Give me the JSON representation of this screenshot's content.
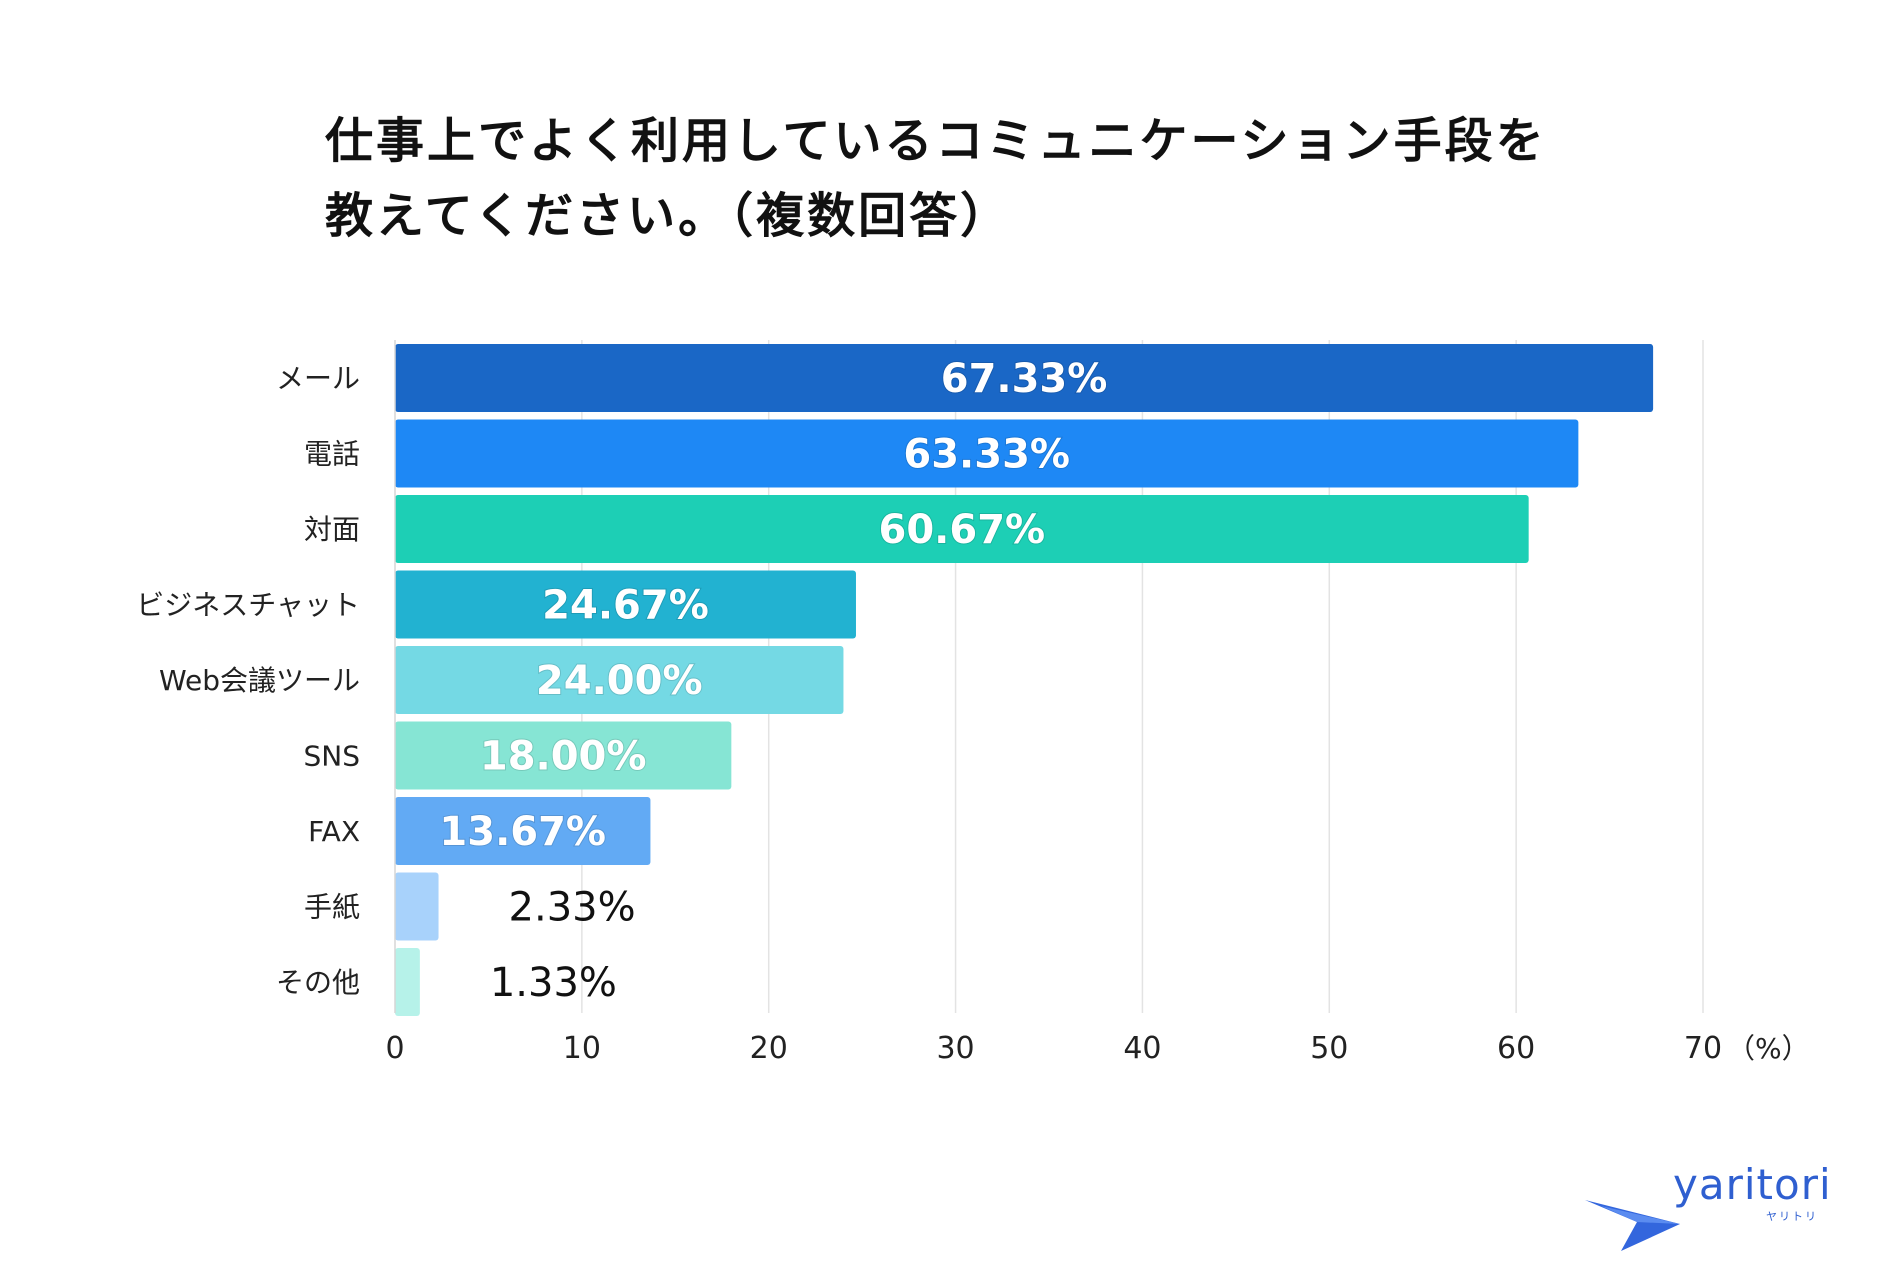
{
  "title": {
    "line1": "仕事上でよく利用しているコミュニケーション手段を",
    "line2": "教えてください。（複数回答）"
  },
  "chart_data": {
    "type": "bar",
    "orientation": "horizontal",
    "categories": [
      "メール",
      "電話",
      "対面",
      "ビジネスチャット",
      "Web会議ツール",
      "SNS",
      "FAX",
      "手紙",
      "その他"
    ],
    "values": [
      67.33,
      63.33,
      60.67,
      24.67,
      24.0,
      18.0,
      13.67,
      2.33,
      1.33
    ],
    "data_labels": [
      "67.33%",
      "63.33%",
      "60.67%",
      "24.67%",
      "24.00%",
      "18.00%",
      "13.67%",
      "2.33%",
      "1.33%"
    ],
    "colors": [
      "#1a67c6",
      "#1e88f5",
      "#1dcfb5",
      "#22b2d1",
      "#74d9e4",
      "#86e5d4",
      "#62aaf4",
      "#a8d2fb",
      "#b6f2e9"
    ],
    "xlim": [
      0,
      70
    ],
    "xticks": [
      0,
      10,
      20,
      30,
      40,
      50,
      60,
      70
    ],
    "xtick_labels": [
      "0",
      "10",
      "20",
      "30",
      "40",
      "50",
      "60",
      "70"
    ],
    "unit_label": "（%）",
    "grid": true
  },
  "logo": {
    "wordmark": "yaritori",
    "subtext": "ヤリトリ",
    "color": "#2f5fd0"
  }
}
